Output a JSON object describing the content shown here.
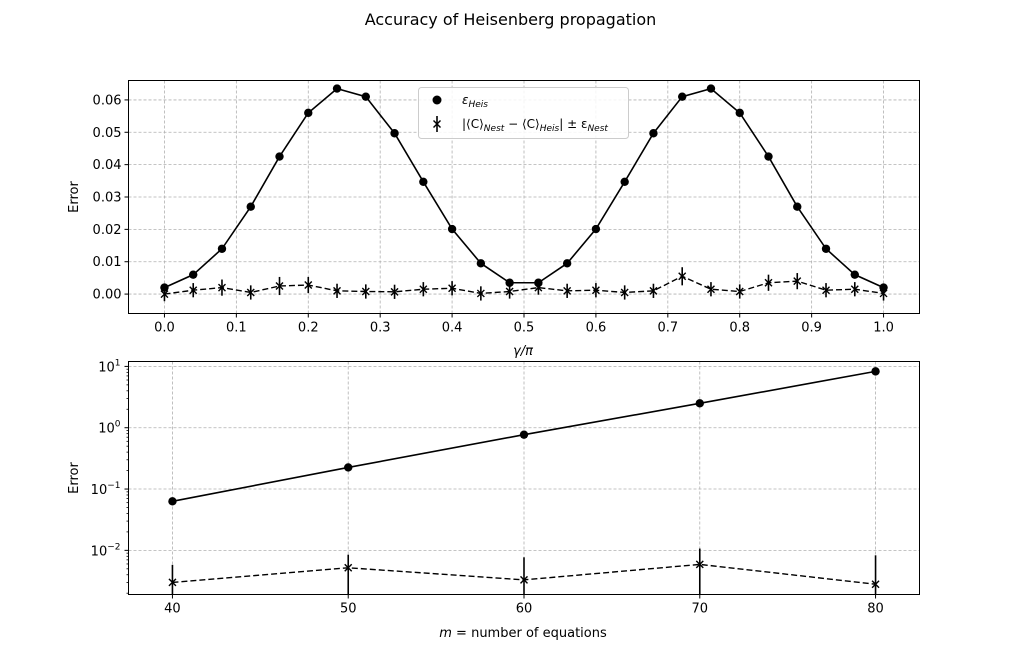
{
  "figure": {
    "title": "Accuracy of Heisenberg propagation"
  },
  "chart_data": [
    {
      "type": "line",
      "xlabel": "γ/π",
      "ylabel": "Error",
      "xlim": [
        -0.05,
        1.05
      ],
      "ylim": [
        -0.006,
        0.066
      ],
      "xticks": [
        0.0,
        0.1,
        0.2,
        0.3,
        0.4,
        0.5,
        0.6,
        0.7,
        0.8,
        0.9,
        1.0
      ],
      "xtick_labels": [
        "0.0",
        "0.1",
        "0.2",
        "0.3",
        "0.4",
        "0.5",
        "0.6",
        "0.7",
        "0.8",
        "0.9",
        "1.0"
      ],
      "yticks": [
        0.0,
        0.01,
        0.02,
        0.03,
        0.04,
        0.05,
        0.06
      ],
      "ytick_labels": [
        "0.00",
        "0.01",
        "0.02",
        "0.03",
        "0.04",
        "0.05",
        "0.06"
      ],
      "grid": true,
      "legend_position": "upper-center",
      "x": [
        0.0,
        0.04,
        0.08,
        0.12,
        0.16,
        0.2,
        0.24,
        0.28,
        0.32,
        0.36,
        0.4,
        0.44,
        0.48,
        0.52,
        0.56,
        0.6,
        0.64,
        0.68,
        0.72,
        0.76,
        0.8,
        0.84,
        0.88,
        0.92,
        0.96,
        1.0
      ],
      "series": [
        {
          "name": "ε_Heis",
          "style": "solid",
          "marker": "circle",
          "color": "#000000",
          "values": [
            0.002,
            0.006,
            0.014,
            0.027,
            0.0425,
            0.056,
            0.0635,
            0.061,
            0.0497,
            0.0347,
            0.0201,
            0.0095,
            0.0035,
            0.0035,
            0.0095,
            0.0201,
            0.0347,
            0.0497,
            0.061,
            0.0635,
            0.056,
            0.0425,
            0.027,
            0.014,
            0.006,
            0.002
          ]
        },
        {
          "name": "|⟨C⟩_Nest − ⟨C⟩_Heis| ± ε_Nest",
          "style": "dashed",
          "marker": "x",
          "color": "#000000",
          "values": [
            0.0,
            0.0012,
            0.002,
            0.0005,
            0.0025,
            0.0028,
            0.001,
            0.0008,
            0.0007,
            0.0015,
            0.0018,
            0.0002,
            0.0008,
            0.002,
            0.001,
            0.0012,
            0.0005,
            0.001,
            0.0055,
            0.0015,
            0.0008,
            0.0035,
            0.004,
            0.0012,
            0.0015,
            0.0002
          ],
          "errors": [
            0.0022,
            0.0022,
            0.0025,
            0.0022,
            0.0028,
            0.0025,
            0.0022,
            0.0022,
            0.0022,
            0.0022,
            0.0022,
            0.0022,
            0.0022,
            0.0022,
            0.0022,
            0.0022,
            0.0022,
            0.0022,
            0.0028,
            0.0022,
            0.0022,
            0.0025,
            0.0025,
            0.0022,
            0.0022,
            0.0022
          ]
        }
      ],
      "legend": {
        "entry1": {
          "sym": "ε",
          "sub": "Heis"
        },
        "entry2": {
          "open": "|⟨C⟩",
          "sub1": "Nest",
          "mid": " − ⟨C⟩",
          "sub2": "Heis",
          "close": "| ± ε",
          "sub3": "Nest"
        }
      }
    },
    {
      "type": "line",
      "xlabel_pre": "m",
      "xlabel_post": " = number of equations",
      "ylabel": "Error",
      "yscale": "log",
      "xlim": [
        37.5,
        82.5
      ],
      "ylim_log10": [
        -2.72,
        1.08
      ],
      "xticks": [
        40,
        50,
        60,
        70,
        80
      ],
      "xtick_labels": [
        "40",
        "50",
        "60",
        "70",
        "80"
      ],
      "yticks_log10": [
        1,
        0,
        -1,
        -2
      ],
      "ytick_labels": [
        {
          "base": "10",
          "exp": "1"
        },
        {
          "base": "10",
          "exp": "0"
        },
        {
          "base": "10",
          "exp": "−1"
        },
        {
          "base": "10",
          "exp": "−2"
        }
      ],
      "grid": true,
      "x": [
        40,
        50,
        60,
        70,
        80
      ],
      "series": [
        {
          "name": "ε_Heis",
          "style": "solid",
          "marker": "circle",
          "color": "#000000",
          "values": [
            0.063,
            0.225,
            0.77,
            2.5,
            8.3
          ]
        },
        {
          "name": "|⟨C⟩_Nest − ⟨C⟩_Heis| ± ε_Nest",
          "style": "dashed",
          "marker": "x",
          "color": "#000000",
          "values": [
            0.003,
            0.0052,
            0.0033,
            0.0059,
            0.0028
          ],
          "err_high": [
            0.0058,
            0.0085,
            0.0077,
            0.0107,
            0.0083
          ]
        }
      ]
    }
  ]
}
